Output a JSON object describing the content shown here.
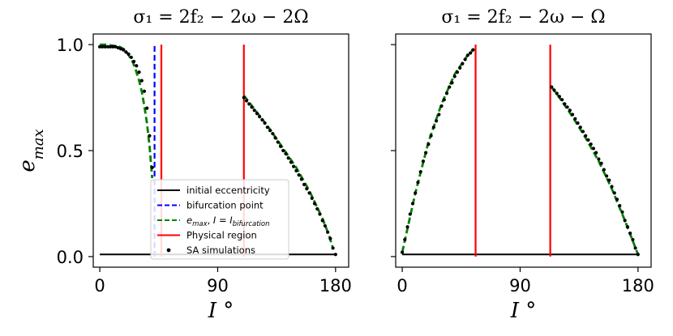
{
  "chart_data": [
    {
      "type": "line",
      "title": "σ₁ = 2f₂ − 2ω − 2Ω",
      "xlabel": "I °",
      "ylabel": "e_max",
      "xlim": [
        -5,
        190
      ],
      "ylim": [
        -0.05,
        1.05
      ],
      "xticks": [
        "0",
        "90",
        "180"
      ],
      "yticks": [
        "0.0",
        "0.5",
        "1.0"
      ],
      "grid": false,
      "legend_position": "lower-center",
      "series": [
        {
          "name": "initial eccentricity",
          "style": "solid",
          "color": "#000000",
          "x": [
            0,
            180
          ],
          "y": [
            0.01,
            0.01
          ]
        },
        {
          "name": "bifurcation point",
          "style": "dashed",
          "color": "#0000ff",
          "vertical_x": 41.8,
          "y": [
            0.0,
            1.0
          ]
        },
        {
          "name": "e_max, I = I_bifurcation",
          "style": "dashed",
          "color": "#008000",
          "segments": [
            {
              "x": [
                0,
                5,
                10,
                15,
                18,
                20,
                22,
                25,
                27,
                30,
                32,
                34,
                36,
                38,
                40
              ],
              "y": [
                1.0,
                1.0,
                0.995,
                0.99,
                0.98,
                0.97,
                0.95,
                0.92,
                0.89,
                0.83,
                0.78,
                0.71,
                0.63,
                0.52,
                0.37
              ]
            },
            {
              "x": [
                110,
                120,
                130,
                140,
                150,
                160,
                170,
                175,
                178
              ],
              "y": [
                0.76,
                0.68,
                0.6,
                0.51,
                0.42,
                0.31,
                0.18,
                0.1,
                0.04
              ]
            }
          ]
        },
        {
          "name": "Physical region",
          "style": "solid",
          "color": "#ff0000",
          "vertical_lines": [
            {
              "x": 47,
              "y": [
                0.0,
                1.0
              ]
            },
            {
              "x": 110,
              "y": [
                0.0,
                1.0
              ]
            }
          ]
        },
        {
          "name": "SA simulations",
          "style": "points",
          "color": "#000000",
          "x": [
            0,
            2,
            4,
            6,
            8,
            10,
            12,
            14,
            16,
            18,
            20,
            22,
            24,
            26,
            28,
            30,
            32,
            34,
            36,
            38,
            40,
            110,
            112,
            114,
            116,
            118,
            120,
            122,
            124,
            126,
            128,
            130,
            132,
            134,
            136,
            138,
            140,
            142,
            144,
            146,
            148,
            150,
            152,
            154,
            156,
            158,
            160,
            162,
            164,
            166,
            168,
            170,
            172,
            174,
            176,
            178,
            180
          ],
          "y": [
            0.99,
            0.99,
            0.99,
            0.99,
            0.99,
            0.99,
            0.99,
            0.985,
            0.98,
            0.975,
            0.965,
            0.955,
            0.94,
            0.92,
            0.9,
            0.87,
            0.83,
            0.78,
            0.7,
            0.57,
            0.42,
            0.75,
            0.735,
            0.72,
            0.705,
            0.69,
            0.675,
            0.66,
            0.645,
            0.63,
            0.61,
            0.595,
            0.58,
            0.56,
            0.54,
            0.52,
            0.5,
            0.485,
            0.465,
            0.445,
            0.425,
            0.405,
            0.385,
            0.365,
            0.34,
            0.32,
            0.3,
            0.275,
            0.25,
            0.225,
            0.2,
            0.17,
            0.145,
            0.115,
            0.085,
            0.04,
            0.01
          ]
        }
      ]
    },
    {
      "type": "line",
      "title": "σ₁ = 2f₂ − 2ω − Ω",
      "xlabel": "I °",
      "ylabel": "",
      "xlim": [
        -5,
        190
      ],
      "ylim": [
        -0.05,
        1.05
      ],
      "xticks": [
        "0",
        "90",
        "180"
      ],
      "yticks": [],
      "grid": false,
      "series": [
        {
          "name": "initial eccentricity",
          "style": "solid",
          "color": "#000000",
          "x": [
            0,
            180
          ],
          "y": [
            0.01,
            0.01
          ]
        },
        {
          "name": "e_max, I = I_bifurcation",
          "style": "dashed",
          "color": "#008000",
          "segments": [
            {
              "x": [
                0,
                10,
                20,
                30,
                40,
                50,
                55
              ],
              "y": [
                0.02,
                0.3,
                0.54,
                0.72,
                0.86,
                0.95,
                0.98
              ]
            },
            {
              "x": [
                114,
                120,
                130,
                140,
                150,
                160,
                170,
                175,
                180
              ],
              "y": [
                0.8,
                0.75,
                0.66,
                0.56,
                0.45,
                0.32,
                0.17,
                0.09,
                0.01
              ]
            }
          ]
        },
        {
          "name": "Physical region",
          "style": "solid",
          "color": "#ff0000",
          "vertical_lines": [
            {
              "x": 56,
              "y": [
                0.0,
                1.0
              ]
            },
            {
              "x": 113,
              "y": [
                0.0,
                1.0
              ]
            }
          ]
        },
        {
          "name": "SA simulations",
          "style": "points",
          "color": "#000000",
          "x": [
            0,
            2,
            4,
            6,
            8,
            10,
            12,
            14,
            16,
            18,
            20,
            22,
            24,
            26,
            28,
            30,
            32,
            34,
            36,
            38,
            40,
            42,
            44,
            46,
            48,
            50,
            52,
            54,
            114,
            116,
            118,
            120,
            122,
            124,
            126,
            128,
            130,
            132,
            134,
            136,
            138,
            140,
            142,
            144,
            146,
            148,
            150,
            152,
            154,
            156,
            158,
            160,
            162,
            164,
            166,
            168,
            170,
            172,
            174,
            176,
            178,
            180
          ],
          "y": [
            0.02,
            0.08,
            0.14,
            0.2,
            0.25,
            0.3,
            0.35,
            0.4,
            0.45,
            0.49,
            0.53,
            0.57,
            0.61,
            0.64,
            0.67,
            0.71,
            0.74,
            0.77,
            0.8,
            0.82,
            0.85,
            0.87,
            0.89,
            0.91,
            0.93,
            0.95,
            0.96,
            0.975,
            0.8,
            0.785,
            0.77,
            0.755,
            0.74,
            0.72,
            0.705,
            0.69,
            0.67,
            0.65,
            0.63,
            0.61,
            0.59,
            0.57,
            0.55,
            0.53,
            0.51,
            0.49,
            0.46,
            0.44,
            0.41,
            0.38,
            0.36,
            0.33,
            0.3,
            0.27,
            0.24,
            0.21,
            0.17,
            0.14,
            0.11,
            0.08,
            0.04,
            0.01
          ]
        }
      ]
    }
  ],
  "legend": {
    "items": [
      {
        "label": "initial eccentricity",
        "color": "#000000",
        "style": "solid"
      },
      {
        "label": "bifurcation point",
        "color": "#0000ff",
        "style": "dashed"
      },
      {
        "label": "e_max, I = I_bifurcation",
        "color": "#008000",
        "style": "dashed"
      },
      {
        "label": "Physical region",
        "color": "#ff0000",
        "style": "solid"
      },
      {
        "label": "SA simulations",
        "color": "#000000",
        "style": "points"
      }
    ]
  }
}
